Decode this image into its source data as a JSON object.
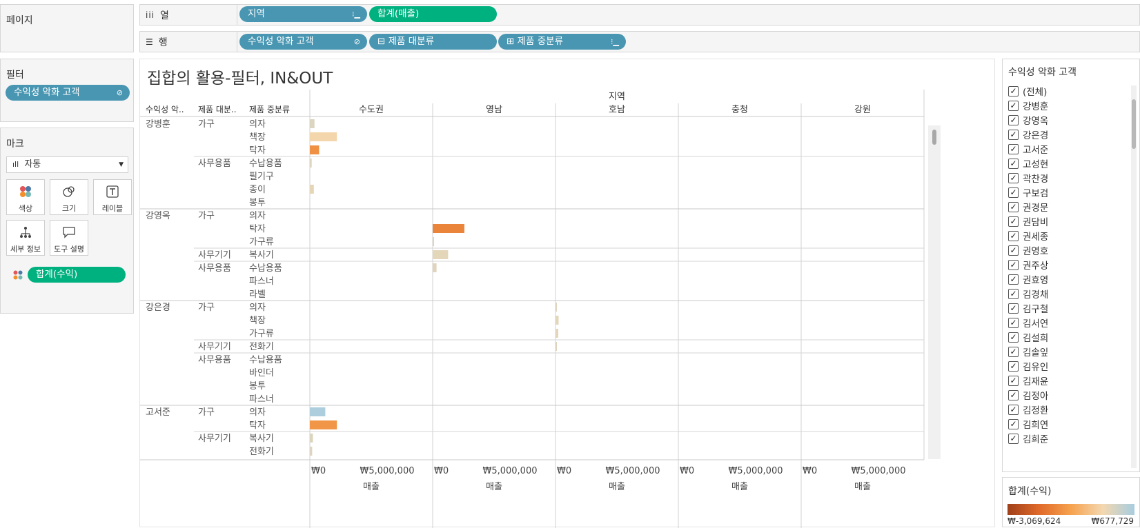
{
  "pages": {
    "title": "페이지"
  },
  "columns_shelf": {
    "label": "열",
    "icon": "iii",
    "pills": [
      {
        "label": "지역",
        "color": "blue",
        "icon": "sort-icon"
      },
      {
        "label": "합계(매출)",
        "color": "green"
      }
    ]
  },
  "rows_shelf": {
    "label": "행",
    "icon": "☰",
    "pills": [
      {
        "label": "수익성 악화 고객",
        "color": "blue",
        "icon": "set-icon"
      },
      {
        "label": "⊟ 제품 대분류",
        "color": "blue"
      },
      {
        "label": "⊞ 제품 중분류",
        "color": "blue",
        "icon": "sort-icon"
      }
    ]
  },
  "filters": {
    "title": "필터",
    "pill": "수익성 악화 고객"
  },
  "marks": {
    "title": "마크",
    "type_select": "자동",
    "buttons": [
      {
        "label": "색상",
        "icon": "color-icon"
      },
      {
        "label": "크기",
        "icon": "size-icon"
      },
      {
        "label": "레이블",
        "icon": "label-icon"
      },
      {
        "label": "세부 정보",
        "icon": "detail-icon"
      },
      {
        "label": "도구 설명",
        "icon": "tooltip-icon"
      }
    ],
    "color_pill": "합계(수익)"
  },
  "viz": {
    "title": "집합의 활용-필터, IN&OUT",
    "col_group_header": "지역",
    "row_headers": [
      "수익성 악..",
      "제품 대분..",
      "제품 중분류"
    ],
    "regions": [
      "수도권",
      "영남",
      "호남",
      "충청",
      "강원"
    ],
    "axis_ticks": [
      "₩0",
      "₩5,000,000"
    ],
    "axis_label": "매출"
  },
  "chart_data": {
    "type": "bar",
    "orientation": "horizontal",
    "measure": "합계(매출)",
    "color_measure": "합계(수익)",
    "xlim": [
      0,
      7500000
    ],
    "rows": [
      {
        "customer": "강병훈",
        "category": "가구",
        "sub": "의자",
        "region": "수도권",
        "sales": 300000,
        "profit": 50000
      },
      {
        "customer": "강병훈",
        "category": "가구",
        "sub": "책장",
        "region": "수도권",
        "sales": 1750000,
        "profit": -300000
      },
      {
        "customer": "강병훈",
        "category": "가구",
        "sub": "탁자",
        "region": "수도권",
        "sales": 600000,
        "profit": -1500000
      },
      {
        "customer": "강병훈",
        "category": "사무용품",
        "sub": "수납용품",
        "region": "수도권",
        "sales": 120000,
        "profit": 30000
      },
      {
        "customer": "강병훈",
        "category": "사무용품",
        "sub": "필기구",
        "region": "수도권",
        "sales": 0,
        "profit": 0
      },
      {
        "customer": "강병훈",
        "category": "사무용품",
        "sub": "종이",
        "region": "수도권",
        "sales": 260000,
        "profit": -100000
      },
      {
        "customer": "강병훈",
        "category": "사무용품",
        "sub": "봉투",
        "region": "수도권",
        "sales": 0,
        "profit": 0
      },
      {
        "customer": "강영옥",
        "category": "가구",
        "sub": "의자",
        "region": "영남",
        "sales": 0,
        "profit": 0
      },
      {
        "customer": "강영옥",
        "category": "가구",
        "sub": "탁자",
        "region": "영남",
        "sales": 2050000,
        "profit": -1700000
      },
      {
        "customer": "강영옥",
        "category": "가구",
        "sub": "가구류",
        "region": "영남",
        "sales": 60000,
        "profit": 10000
      },
      {
        "customer": "강영옥",
        "category": "사무기기",
        "sub": "복사기",
        "region": "영남",
        "sales": 1000000,
        "profit": -80000
      },
      {
        "customer": "강영옥",
        "category": "사무용품",
        "sub": "수납용품",
        "region": "영남",
        "sales": 250000,
        "profit": -20000
      },
      {
        "customer": "강영옥",
        "category": "사무용품",
        "sub": "파스너",
        "region": "영남",
        "sales": 0,
        "profit": 0
      },
      {
        "customer": "강영옥",
        "category": "사무용품",
        "sub": "라벨",
        "region": "영남",
        "sales": 0,
        "profit": 0
      },
      {
        "customer": "강은경",
        "category": "가구",
        "sub": "의자",
        "region": "호남",
        "sales": 60000,
        "profit": 10000
      },
      {
        "customer": "강은경",
        "category": "가구",
        "sub": "책장",
        "region": "호남",
        "sales": 200000,
        "profit": -50000
      },
      {
        "customer": "강은경",
        "category": "가구",
        "sub": "가구류",
        "region": "호남",
        "sales": 180000,
        "profit": -60000
      },
      {
        "customer": "강은경",
        "category": "사무기기",
        "sub": "전화기",
        "region": "호남",
        "sales": 50000,
        "profit": 10000
      },
      {
        "customer": "강은경",
        "category": "사무용품",
        "sub": "수납용품",
        "region": "호남",
        "sales": 0,
        "profit": 0
      },
      {
        "customer": "강은경",
        "category": "사무용품",
        "sub": "바인더",
        "region": "호남",
        "sales": 0,
        "profit": 0
      },
      {
        "customer": "강은경",
        "category": "사무용품",
        "sub": "봉투",
        "region": "호남",
        "sales": 0,
        "profit": 0
      },
      {
        "customer": "강은경",
        "category": "사무용품",
        "sub": "파스너",
        "region": "호남",
        "sales": 0,
        "profit": 0
      },
      {
        "customer": "고서준",
        "category": "가구",
        "sub": "의자",
        "region": "수도권",
        "sales": 1000000,
        "profit": 600000
      },
      {
        "customer": "고서준",
        "category": "가구",
        "sub": "탁자",
        "region": "수도권",
        "sales": 1750000,
        "profit": -1400000
      },
      {
        "customer": "고서준",
        "category": "사무기기",
        "sub": "복사기",
        "region": "수도권",
        "sales": 200000,
        "profit": 20000
      },
      {
        "customer": "고서준",
        "category": "사무기기",
        "sub": "전화기",
        "region": "수도권",
        "sales": 150000,
        "profit": 30000
      }
    ]
  },
  "filter_card": {
    "title": "수익성 악화 고객",
    "items": [
      "(전체)",
      "강병훈",
      "강영옥",
      "강은경",
      "고서준",
      "고성현",
      "곽찬경",
      "구보검",
      "권경문",
      "권담비",
      "권세종",
      "권영호",
      "권주상",
      "권효영",
      "김경채",
      "김구철",
      "김서연",
      "김설희",
      "김솔잎",
      "김유인",
      "김재윤",
      "김정아",
      "김정환",
      "김희연",
      "김희준"
    ]
  },
  "legend": {
    "title": "합계(수익)",
    "min": "₩-3,069,624",
    "max": "₩677,729",
    "colors": [
      "#a0401a",
      "#e06a2a",
      "#f6a24e",
      "#f3d8b0",
      "#a7cde0"
    ]
  }
}
